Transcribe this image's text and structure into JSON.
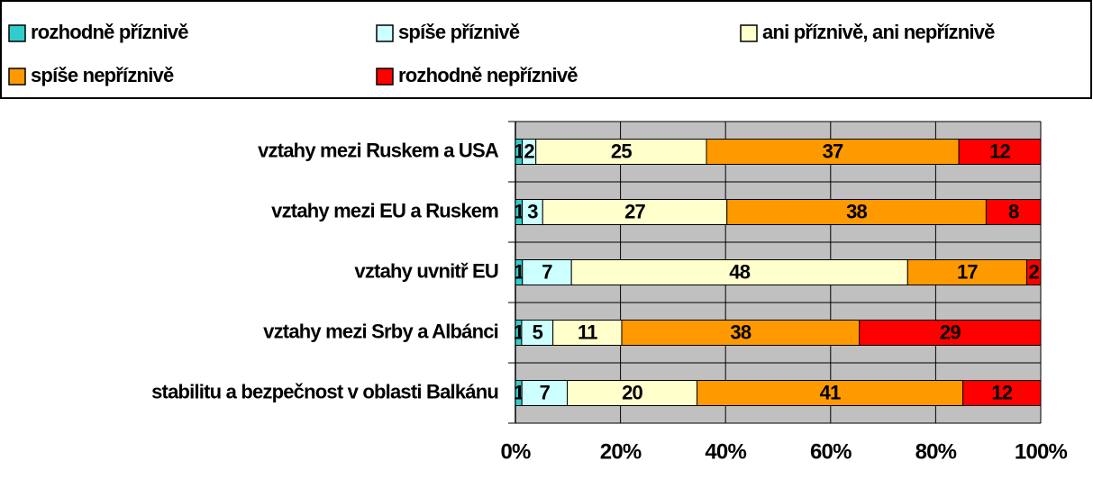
{
  "chart_data": {
    "type": "bar",
    "orientation": "horizontal",
    "stacking": "percent",
    "categories": [
      "vztahy mezi Ruskem a USA",
      "vztahy mezi EU a Ruskem",
      "vztahy uvnitř EU",
      "vztahy mezi Srby a Albánci",
      "stabilitu a bezpečnost v oblasti Balkánu"
    ],
    "series": [
      {
        "name": "rozhodně příznivě",
        "color": "#33cccc",
        "values": [
          1,
          1,
          1,
          1,
          1
        ]
      },
      {
        "name": "spíše příznivě",
        "color": "#ccffff",
        "values": [
          2,
          3,
          7,
          5,
          7
        ]
      },
      {
        "name": "ani příznivě, ani nepříznivě",
        "color": "#ffffcc",
        "values": [
          25,
          27,
          48,
          11,
          20
        ]
      },
      {
        "name": "spíše nepříznivě",
        "color": "#ff9900",
        "values": [
          37,
          38,
          17,
          38,
          41
        ]
      },
      {
        "name": "rozhodně nepříznivě",
        "color": "#ff0000",
        "values": [
          12,
          8,
          2,
          29,
          12
        ]
      }
    ],
    "xlim": [
      0,
      100
    ],
    "xticks": [
      {
        "value": 0,
        "label": "0%"
      },
      {
        "value": 20,
        "label": "20%"
      },
      {
        "value": 40,
        "label": "40%"
      },
      {
        "value": 60,
        "label": "60%"
      },
      {
        "value": 80,
        "label": "80%"
      },
      {
        "value": 100,
        "label": "100%"
      }
    ],
    "grid": true,
    "legend": "top"
  }
}
